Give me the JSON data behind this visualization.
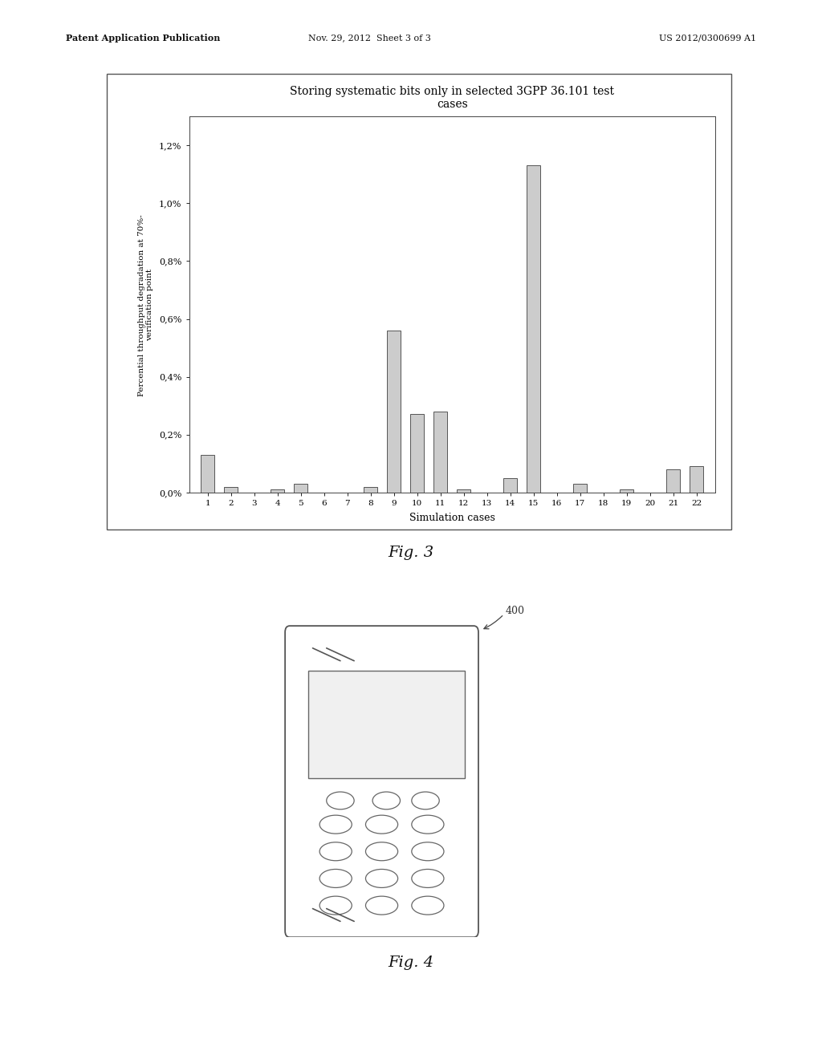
{
  "title": "Storing systematic bits only in selected 3GPP 36.101 test\ncases",
  "xlabel": "Simulation cases",
  "ylabel": "Percential throughput degradation at 70%- \nverification point",
  "yticks_pct": [
    0.0,
    0.2,
    0.4,
    0.6,
    0.8,
    1.0,
    1.2
  ],
  "ytick_labels": [
    "0,0%",
    "0,2%",
    "0,4%",
    "0,6%",
    "0,8%",
    "1,0%",
    "1,2%"
  ],
  "ylim_pct": 1.3,
  "xticks": [
    1,
    2,
    3,
    4,
    5,
    6,
    7,
    8,
    9,
    10,
    11,
    12,
    13,
    14,
    15,
    16,
    17,
    18,
    19,
    20,
    21,
    22
  ],
  "bar_values_pct": [
    0.13,
    0.02,
    0.0,
    0.01,
    0.03,
    0.0,
    0.0,
    0.02,
    0.56,
    0.27,
    0.28,
    0.01,
    0.0,
    0.05,
    1.13,
    0.0,
    0.03,
    0.0,
    0.01,
    0.0,
    0.08,
    0.09
  ],
  "bar_color": "#cccccc",
  "bar_edgecolor": "#555555",
  "fig3_label": "Fig. 3",
  "fig4_label": "Fig. 4",
  "header_left": "Patent Application Publication",
  "header_mid": "Nov. 29, 2012  Sheet 3 of 3",
  "header_right": "US 2012/0300699 A1",
  "label_400": "400",
  "background_color": "#ffffff"
}
